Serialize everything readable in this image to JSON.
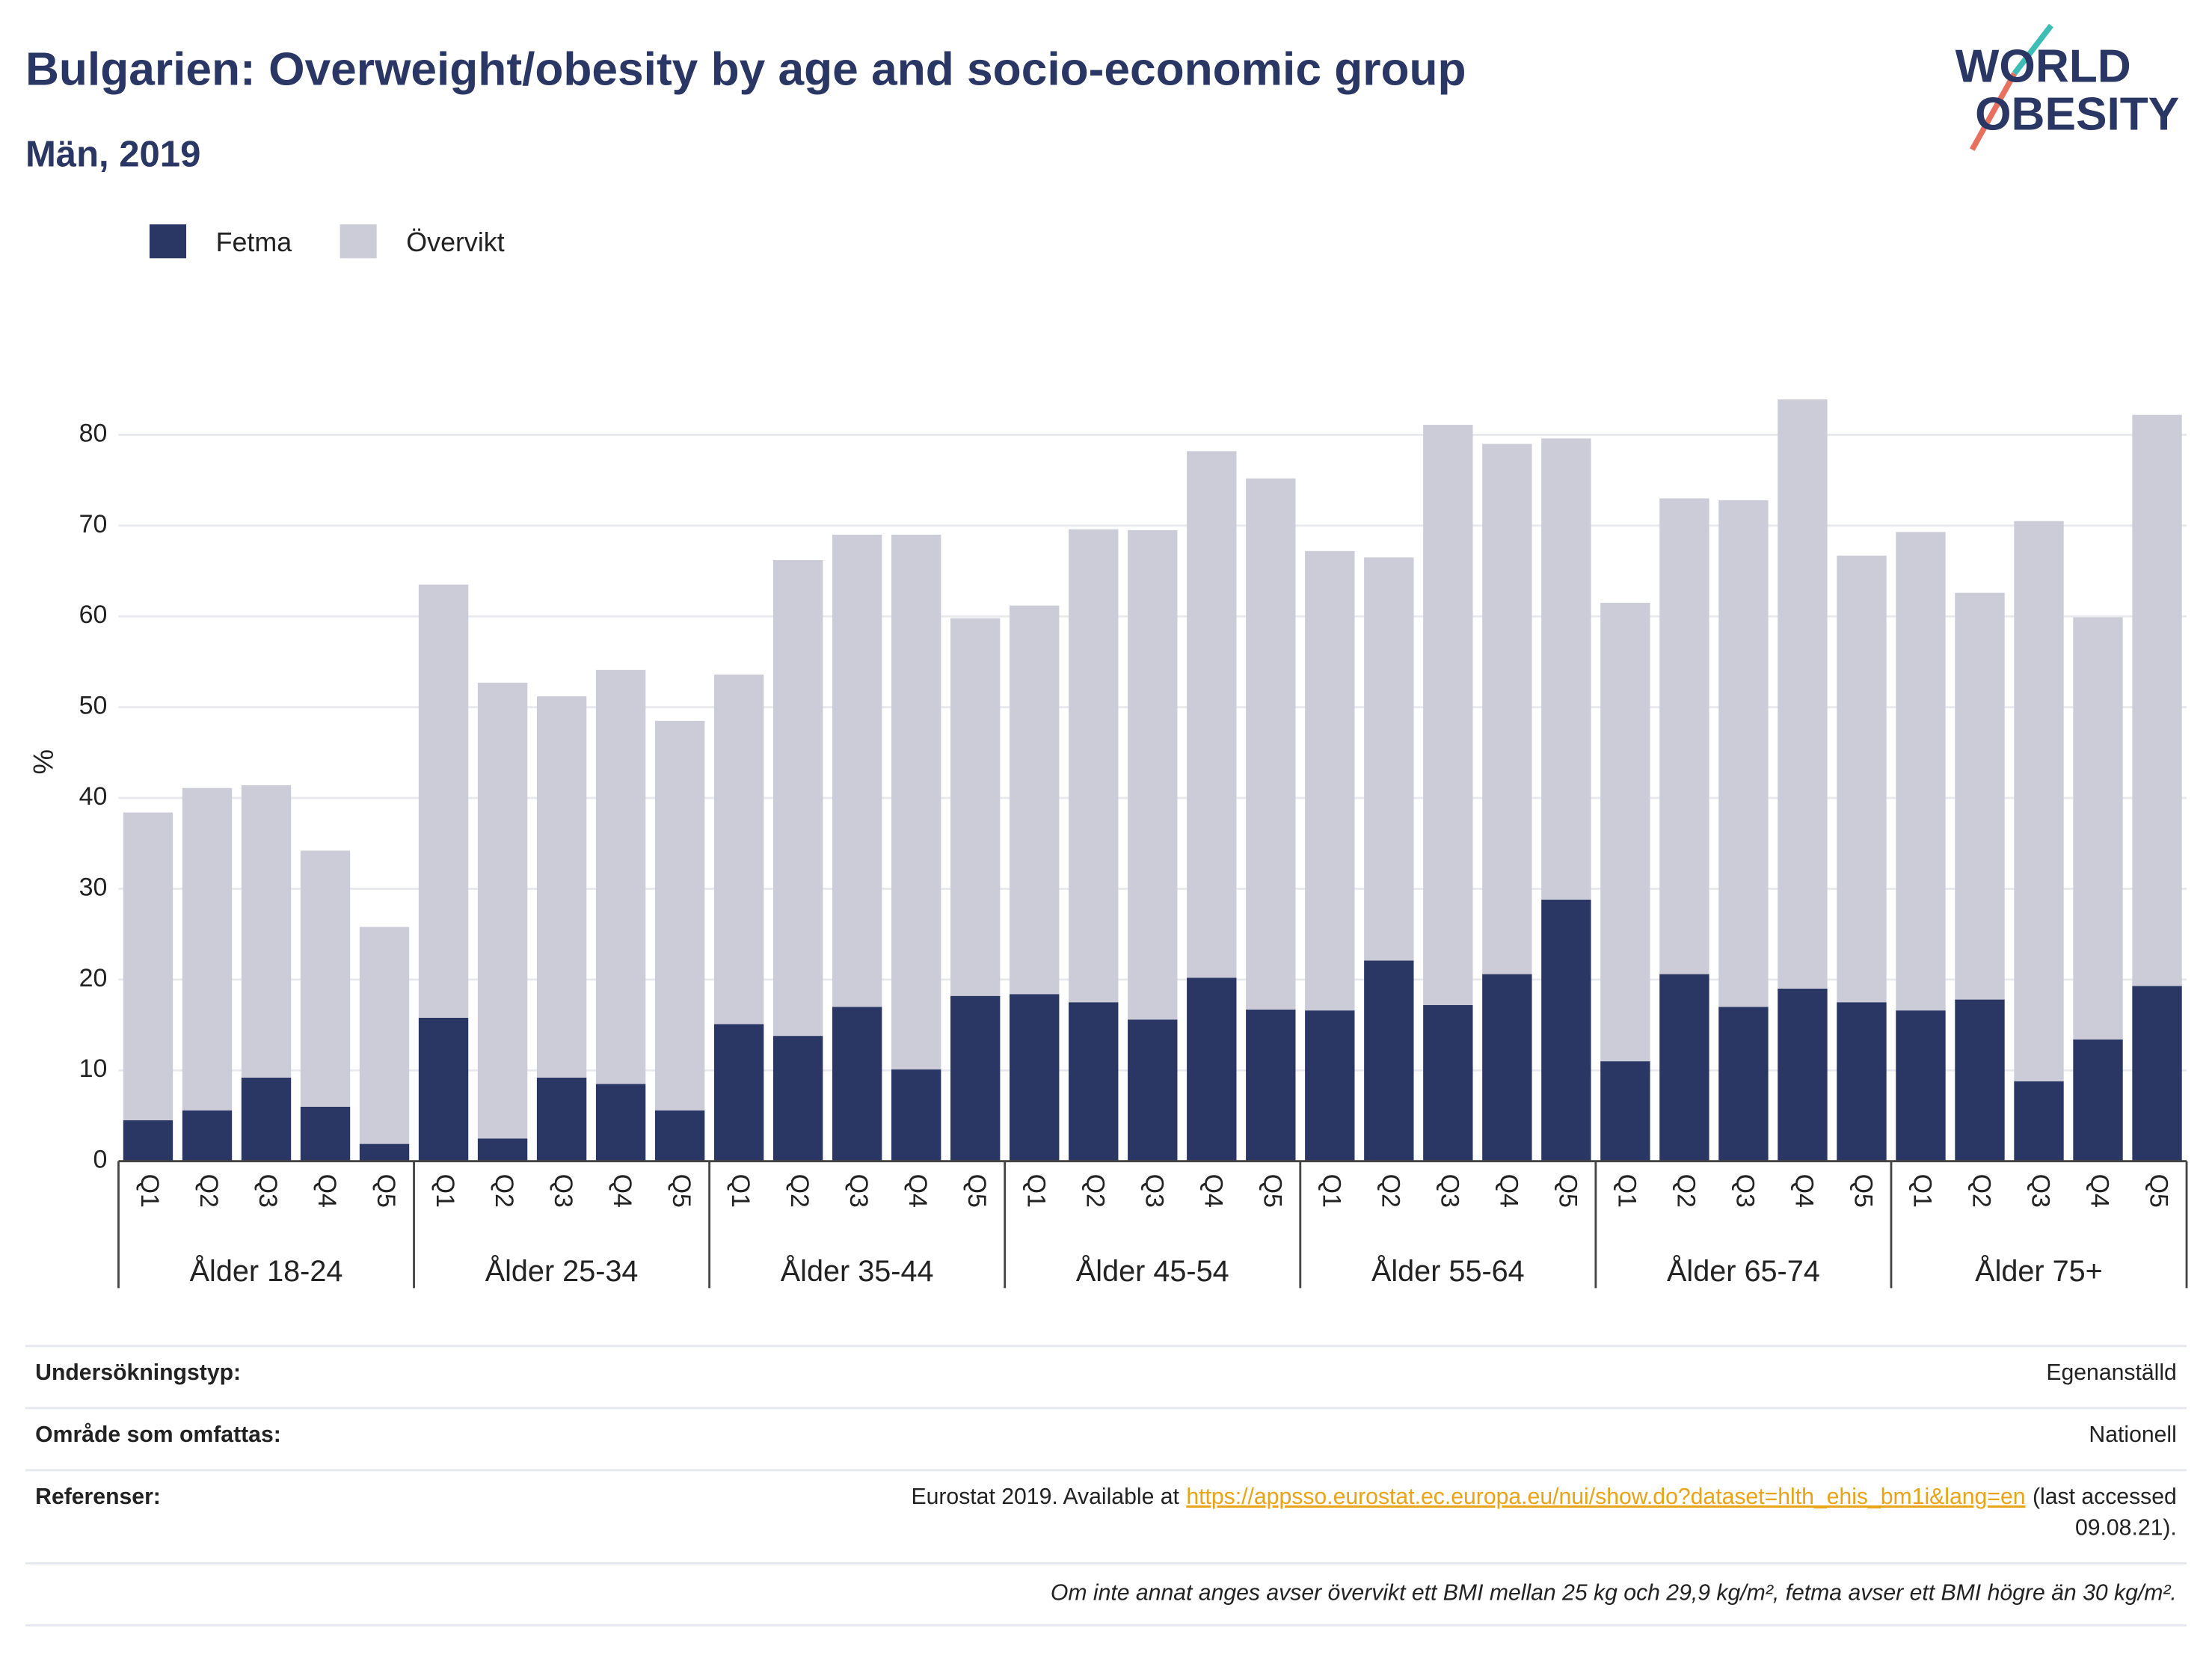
{
  "chart_data": {
    "type": "stacked_bar",
    "title": "Bulgarien: Overweight/obesity by age and socio-economic group",
    "subtitle": "Män, 2019",
    "y_label": "%",
    "logo": [
      "WORLD",
      "OBESITY"
    ],
    "categories": [
      "Q1",
      "Q2",
      "Q3",
      "Q4",
      "Q5",
      "Q1",
      "Q2",
      "Q3",
      "Q4",
      "Q5",
      "Q1",
      "Q2",
      "Q3",
      "Q4",
      "Q5",
      "Q1",
      "Q2",
      "Q3",
      "Q4",
      "Q5",
      "Q1",
      "Q2",
      "Q3",
      "Q4",
      "Q5",
      "Q1",
      "Q2",
      "Q3",
      "Q4",
      "Q5",
      "Q1",
      "Q2",
      "Q3",
      "Q4",
      "Q5"
    ],
    "groups": [
      "Ålder 18-24",
      "Ålder 25-34",
      "Ålder 35-44",
      "Ålder 45-54",
      "Ålder 55-64",
      "Ålder 65-74",
      "Ålder 75+"
    ],
    "series": [
      {
        "name": "Fetma",
        "color": "#2a3663",
        "values": [
          4.5,
          5.6,
          9.2,
          6.0,
          1.9,
          15.8,
          2.5,
          9.2,
          8.5,
          5.6,
          15.1,
          13.8,
          17.0,
          10.1,
          18.2,
          18.4,
          17.5,
          15.6,
          20.2,
          16.7,
          16.6,
          22.1,
          17.2,
          20.6,
          28.8,
          11.0,
          20.6,
          17.0,
          19.0,
          17.5,
          16.6,
          17.8,
          8.8,
          13.4,
          19.3
        ]
      },
      {
        "name": "Övervikt",
        "color": "#cbccd8",
        "values": [
          33.9,
          35.5,
          32.2,
          28.2,
          23.9,
          47.7,
          50.2,
          42.0,
          45.6,
          42.9,
          38.5,
          52.4,
          52.0,
          58.9,
          41.6,
          42.8,
          52.1,
          53.9,
          58.0,
          58.5,
          50.6,
          44.4,
          63.9,
          58.4,
          50.8,
          50.5,
          52.4,
          55.8,
          64.9,
          49.2,
          52.7,
          44.8,
          61.7,
          46.5,
          62.9
        ]
      }
    ],
    "ylim": [
      0,
      85
    ],
    "yticks": [
      0,
      10,
      20,
      30,
      40,
      50,
      60,
      70,
      80
    ],
    "grid": true,
    "legend": "top-left"
  },
  "footer": {
    "rows": [
      {
        "label": "Undersökningstyp:",
        "value": "Egenanställd"
      },
      {
        "label": "Område som omfattas:",
        "value": "Nationell"
      }
    ],
    "reference": {
      "label": "Referenser:",
      "prefix": "Eurostat 2019. Available at",
      "link": "https://appsso.eurostat.ec.europa.eu/nui/show.do?dataset=hlth_ehis_bm1i&lang=en",
      "suffix": "(last accessed",
      "suffix_line2": "09.08.21)."
    },
    "note": "Om inte annat anges avser övervikt ett BMI mellan 25 kg och 29,9 kg/m², fetma avser ett BMI högre än 30 kg/m²."
  }
}
